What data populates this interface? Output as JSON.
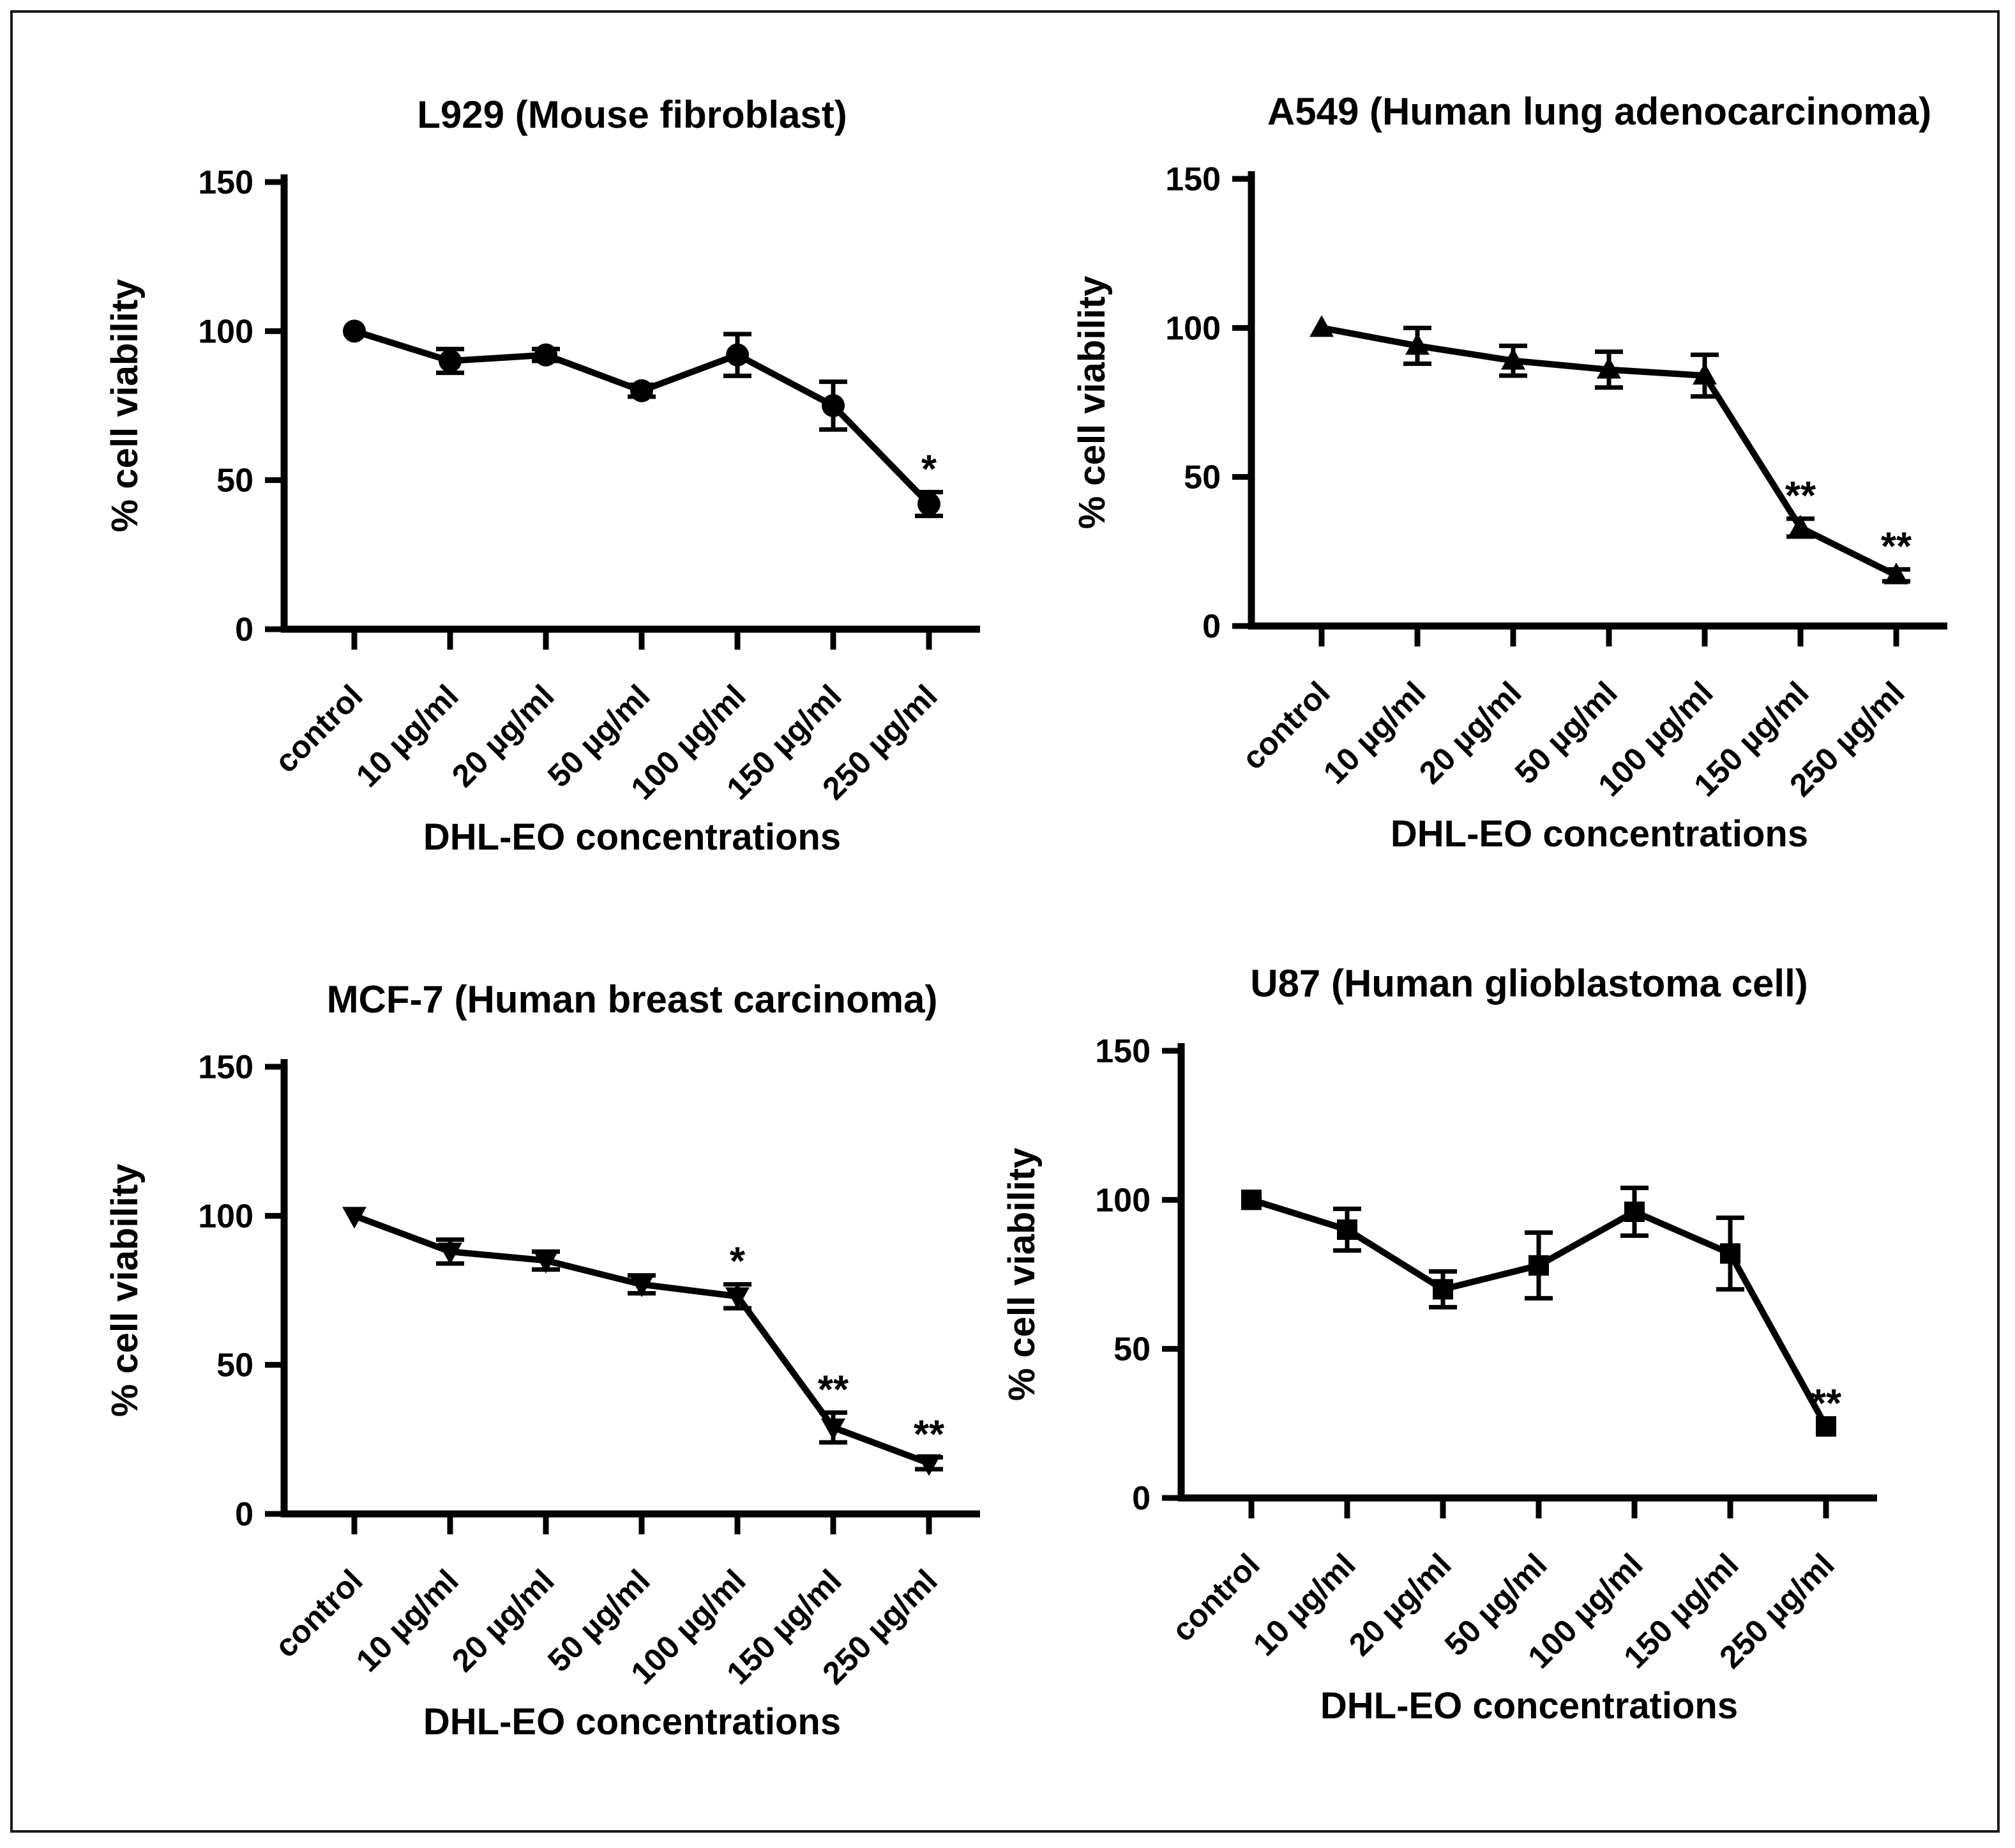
{
  "figure": {
    "background": "#ffffff",
    "border_color": "#1a1a1a",
    "line_color": "#000000",
    "text_color": "#000000"
  },
  "chart_data": [
    {
      "type": "line",
      "panel": "top-left",
      "title": "L929 (Mouse fibroblast)",
      "xlabel": "DHL-EO concentrations",
      "ylabel": "% cell viability",
      "marker": "circle",
      "legend_position": "none",
      "grid": false,
      "ylim": [
        0,
        150
      ],
      "yticks": [
        0,
        50,
        100,
        150
      ],
      "categories": [
        "control",
        "10 µg/ml",
        "20 µg/ml",
        "50 µg/ml",
        "100 µg/ml",
        "150 µg/ml",
        "250 µg/ml"
      ],
      "values": [
        100,
        90,
        92,
        80,
        92,
        75,
        42
      ],
      "errors": [
        0,
        4,
        2,
        2,
        7,
        8,
        4
      ],
      "significance": [
        "",
        "",
        "",
        "",
        "",
        "",
        "*"
      ]
    },
    {
      "type": "line",
      "panel": "top-right",
      "title": "A549 (Human lung adenocarcinoma)",
      "xlabel": "DHL-EO concentrations",
      "ylabel": "% cell viability",
      "marker": "triangle-up",
      "legend_position": "none",
      "grid": false,
      "ylim": [
        0,
        150
      ],
      "yticks": [
        0,
        50,
        100,
        150
      ],
      "categories": [
        "control",
        "10 µg/ml",
        "20 µg/ml",
        "50 µg/ml",
        "100 µg/ml",
        "150 µg/ml",
        "250 µg/ml"
      ],
      "values": [
        100,
        94,
        89,
        86,
        84,
        33,
        17
      ],
      "errors": [
        0,
        6,
        5,
        6,
        7,
        3,
        2
      ],
      "significance": [
        "",
        "",
        "",
        "",
        "",
        "**",
        "**"
      ]
    },
    {
      "type": "line",
      "panel": "bottom-left",
      "title": "MCF-7 (Human breast carcinoma)",
      "xlabel": "DHL-EO concentrations",
      "ylabel": "% cell viability",
      "marker": "triangle-down",
      "legend_position": "none",
      "grid": false,
      "ylim": [
        0,
        150
      ],
      "yticks": [
        0,
        50,
        100,
        150
      ],
      "categories": [
        "control",
        "10 µg/ml",
        "20 µg/ml",
        "50 µg/ml",
        "100 µg/ml",
        "150 µg/ml",
        "250 µg/ml"
      ],
      "values": [
        100,
        88,
        85,
        77,
        73,
        29,
        17
      ],
      "errors": [
        0,
        4,
        3,
        3,
        4,
        5,
        2
      ],
      "significance": [
        "",
        "",
        "",
        "",
        "*",
        "**",
        "**"
      ]
    },
    {
      "type": "line",
      "panel": "bottom-right",
      "title": "U87 (Human glioblastoma cell)",
      "xlabel": "DHL-EO concentrations",
      "ylabel": "% cell viability",
      "marker": "square",
      "legend_position": "none",
      "grid": false,
      "ylim": [
        0,
        150
      ],
      "yticks": [
        0,
        50,
        100,
        150
      ],
      "categories": [
        "control",
        "10 µg/ml",
        "20 µg/ml",
        "50 µg/ml",
        "100 µg/ml",
        "150 µg/ml",
        "250 µg/ml"
      ],
      "values": [
        100,
        90,
        70,
        78,
        96,
        82,
        24
      ],
      "errors": [
        0,
        7,
        6,
        11,
        8,
        12,
        0
      ],
      "significance": [
        "",
        "",
        "",
        "",
        "",
        "",
        "**"
      ]
    }
  ]
}
